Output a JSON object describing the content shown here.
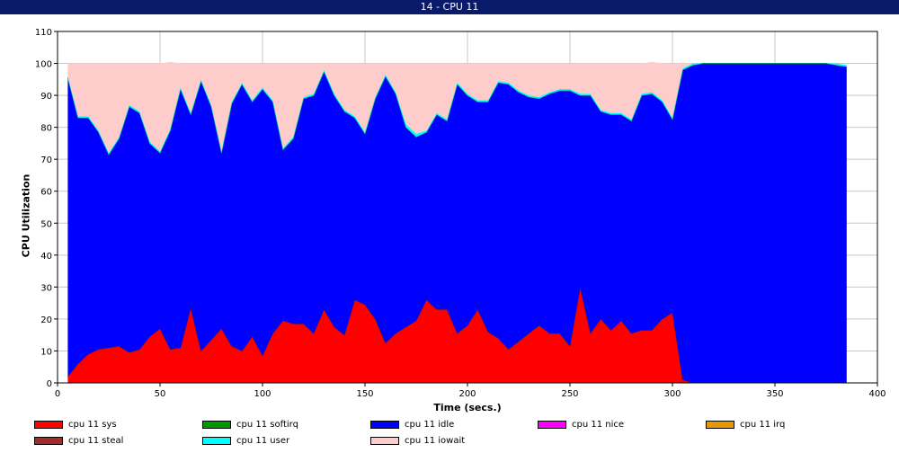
{
  "window": {
    "title": "14 - CPU 11"
  },
  "chart_data": {
    "type": "area",
    "stacked": true,
    "title": "14 - CPU 11",
    "xlabel": "Time (secs.)",
    "ylabel": "CPU Utilization",
    "xlim": [
      0,
      400
    ],
    "ylim": [
      0,
      110
    ],
    "xticks": [
      0,
      50,
      100,
      150,
      200,
      250,
      300,
      350,
      400
    ],
    "yticks": [
      0,
      10,
      20,
      30,
      40,
      50,
      60,
      70,
      80,
      90,
      100,
      110
    ],
    "grid": true,
    "legend_position": "bottom",
    "x": [
      5,
      10,
      15,
      20,
      25,
      30,
      35,
      40,
      45,
      50,
      55,
      60,
      65,
      70,
      75,
      80,
      85,
      90,
      95,
      100,
      105,
      110,
      115,
      120,
      125,
      130,
      135,
      140,
      145,
      150,
      155,
      160,
      165,
      170,
      175,
      180,
      185,
      190,
      195,
      200,
      205,
      210,
      215,
      220,
      225,
      230,
      235,
      240,
      245,
      250,
      255,
      260,
      265,
      270,
      275,
      280,
      285,
      290,
      295,
      300,
      305,
      310,
      315,
      320,
      325,
      330,
      335,
      340,
      345,
      350,
      355,
      360,
      365,
      370,
      375,
      380,
      385
    ],
    "series": [
      {
        "name": "cpu 11 sys",
        "color": "#ff0000",
        "values": [
          2,
          6,
          9,
          10.5,
          11,
          11.5,
          9.5,
          10.5,
          14.5,
          17,
          10.5,
          11,
          23.5,
          10,
          13.5,
          17,
          11.5,
          10,
          14.5,
          8.5,
          15.5,
          19.5,
          18.5,
          18.5,
          15.5,
          23,
          17.5,
          15,
          26,
          24.5,
          20,
          12.5,
          15.5,
          17.5,
          19.5,
          26,
          23,
          23,
          15.5,
          18,
          23,
          16,
          14,
          10.5,
          13,
          15.5,
          18,
          15.5,
          15.5,
          11.5,
          30,
          15.5,
          20,
          16.5,
          19.5,
          15.5,
          16.5,
          16.5,
          20,
          22,
          1,
          0,
          0,
          0,
          0,
          0,
          0,
          0,
          0,
          0,
          0,
          0,
          0,
          0,
          0,
          0,
          0
        ]
      },
      {
        "name": "cpu 11 softirq",
        "color": "#009900",
        "values": [
          0,
          0,
          0,
          0,
          0,
          0,
          0,
          0,
          0,
          0,
          0,
          0,
          0,
          0,
          0,
          0,
          0,
          0,
          0,
          0,
          0,
          0,
          0,
          0,
          0,
          0,
          0,
          0,
          0,
          0,
          0,
          0,
          0,
          0,
          0,
          0,
          0,
          0,
          0,
          0,
          0,
          0,
          0,
          0,
          0,
          0,
          0,
          0,
          0,
          0,
          0,
          0,
          0,
          0,
          0,
          0,
          0,
          0,
          0,
          0,
          0,
          0,
          0,
          0,
          0,
          0,
          0,
          0,
          0,
          0,
          0,
          0,
          0,
          0,
          0,
          0,
          0
        ]
      },
      {
        "name": "cpu 11 idle",
        "color": "#0000ff",
        "values": [
          93.5,
          77,
          74,
          68,
          60.5,
          65,
          77,
          74,
          60.5,
          55,
          68.5,
          81,
          60.5,
          84.5,
          73,
          55,
          76,
          83.5,
          73.5,
          83.5,
          72.5,
          53.5,
          58,
          70.5,
          74.5,
          74.5,
          72.5,
          70,
          57,
          53.5,
          69,
          83.5,
          75,
          62.5,
          57.5,
          52.5,
          61,
          59,
          78,
          72,
          65,
          72,
          80,
          83,
          78,
          74,
          71,
          75,
          76,
          80,
          60,
          74.5,
          65,
          67.5,
          64.5,
          66.5,
          73.5,
          74,
          68,
          60.5,
          97,
          99.5,
          100,
          100,
          100,
          100,
          100,
          100,
          100,
          100,
          100,
          100,
          100,
          100,
          100,
          99.5,
          99
        ]
      },
      {
        "name": "cpu 11 nice",
        "color": "#ff00ff",
        "values": [
          0,
          0,
          0,
          0,
          0,
          0,
          0,
          0,
          0,
          0,
          0,
          0,
          0,
          0,
          0,
          0,
          0,
          0,
          0,
          0,
          0,
          0,
          0,
          0,
          0,
          0,
          0,
          0,
          0,
          0,
          0,
          0,
          0,
          0,
          0,
          0,
          0,
          0,
          0,
          0,
          0,
          0,
          0,
          0,
          0,
          0,
          0,
          0,
          0,
          0,
          0,
          0,
          0,
          0,
          0,
          0,
          0,
          0,
          0,
          0,
          0,
          0,
          0,
          0,
          0,
          0,
          0,
          0,
          0,
          0,
          0,
          0,
          0,
          0,
          0,
          0,
          0
        ]
      },
      {
        "name": "cpu 11 irq",
        "color": "#e69a00",
        "values": [
          0,
          0,
          0,
          0,
          0,
          0,
          0,
          0,
          0,
          0,
          0,
          0,
          0,
          0,
          0,
          0,
          0,
          0,
          0,
          0,
          0,
          0,
          0,
          0,
          0,
          0,
          0,
          0,
          0,
          0,
          0,
          0,
          0,
          0,
          0,
          0,
          0,
          0,
          0,
          0,
          0,
          0,
          0,
          0,
          0,
          0,
          0,
          0,
          0,
          0,
          0,
          0,
          0,
          0,
          0,
          0,
          0,
          0,
          0,
          0,
          0,
          0,
          0,
          0,
          0,
          0,
          0,
          0,
          0,
          0,
          0,
          0,
          0,
          0,
          0,
          0,
          0
        ]
      },
      {
        "name": "cpu 11 steal",
        "color": "#a52a2a",
        "values": [
          0,
          0,
          0,
          0,
          0,
          0,
          0,
          0,
          0,
          0,
          0,
          0,
          0,
          0,
          0,
          0,
          0,
          0,
          0,
          0,
          0,
          0,
          0,
          0,
          0,
          0,
          0,
          0,
          0,
          0,
          0,
          0,
          0,
          0,
          0,
          0,
          0,
          0,
          0,
          0,
          0,
          0,
          0,
          0,
          0,
          0,
          0,
          0,
          0,
          0,
          0,
          0,
          0,
          0,
          0,
          0,
          0,
          0,
          0,
          0,
          0,
          0,
          0,
          0,
          0,
          0,
          0,
          0,
          0,
          0,
          0,
          0,
          0,
          0,
          0,
          0,
          0
        ]
      },
      {
        "name": "cpu 11 user",
        "color": "#00ffff",
        "values": [
          0.5,
          0.5,
          0.5,
          0.5,
          0.5,
          0.5,
          0.5,
          0.5,
          0.5,
          0.5,
          0.5,
          0.5,
          0.5,
          0.5,
          0.5,
          0.5,
          0.5,
          0.5,
          0.5,
          0.5,
          0.5,
          0.5,
          0.5,
          0.5,
          0.5,
          0.5,
          0.5,
          0.5,
          0.5,
          0.5,
          0.5,
          0.5,
          0.5,
          1,
          1,
          0.5,
          0.5,
          0.5,
          0.5,
          0.5,
          0.5,
          0.5,
          0.5,
          0.5,
          0.5,
          0.5,
          0.5,
          0.5,
          0.5,
          0.5,
          0.5,
          0.5,
          0.5,
          0.5,
          0.5,
          0.5,
          0.5,
          0.5,
          0.5,
          0.5,
          0.5,
          0.5,
          0,
          0,
          0,
          0,
          0,
          0,
          0,
          0,
          0,
          0,
          0,
          0,
          0,
          0.5,
          0.5
        ]
      },
      {
        "name": "cpu 11 iowait",
        "color": "#ffcccc",
        "values": [
          4,
          16.5,
          16.5,
          21,
          28,
          23,
          13,
          15,
          24.5,
          27.5,
          21,
          7.5,
          15.5,
          5,
          13,
          27.5,
          12,
          6,
          11.5,
          7.5,
          11.5,
          26.5,
          23,
          10.5,
          9.5,
          2,
          9.5,
          14.5,
          16.5,
          21.5,
          10.5,
          3.5,
          9,
          19,
          22,
          21,
          15.5,
          17.5,
          6,
          9.5,
          11.5,
          11.5,
          5.5,
          6,
          8.5,
          10,
          10.5,
          9,
          8,
          8,
          9.5,
          9.5,
          14.5,
          15.5,
          15.5,
          17.5,
          9.5,
          9.5,
          11.5,
          17,
          1.5,
          0,
          0,
          0,
          0,
          0,
          0,
          0,
          0,
          0,
          0,
          0,
          0,
          0,
          0,
          0,
          0
        ]
      }
    ]
  }
}
